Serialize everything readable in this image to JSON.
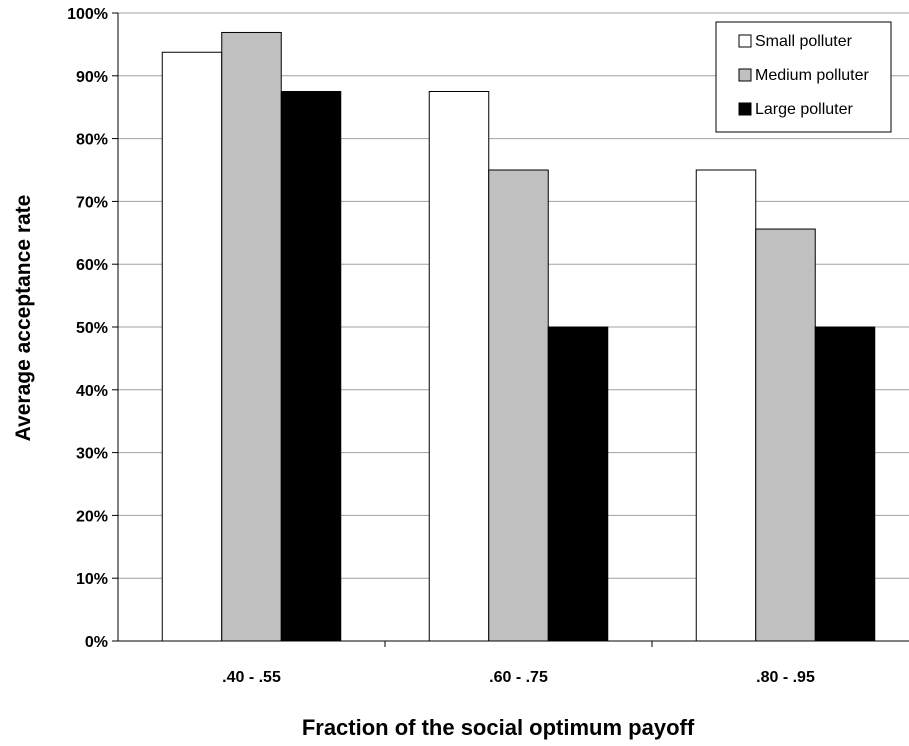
{
  "chart_data": {
    "type": "bar",
    "categories": [
      ".40 - .55",
      ".60 - .75",
      ".80 - .95"
    ],
    "series": [
      {
        "name": "Small polluter",
        "values": [
          93.75,
          87.5,
          75.0
        ],
        "color": "#ffffff"
      },
      {
        "name": "Medium polluter",
        "values": [
          96.9,
          75.0,
          65.6
        ],
        "color": "#c0c0c0"
      },
      {
        "name": "Large polluter",
        "values": [
          87.5,
          50.0,
          50.0
        ],
        "color": "#000000"
      }
    ],
    "xlabel": "Fraction of the social optimum payoff",
    "ylabel": "Average acceptance rate",
    "ylim": [
      0,
      100
    ],
    "yticks": [
      0,
      10,
      20,
      30,
      40,
      50,
      60,
      70,
      80,
      90,
      100
    ],
    "ytick_labels": [
      "0%",
      "10%",
      "20%",
      "30%",
      "40%",
      "50%",
      "60%",
      "70%",
      "80%",
      "90%",
      "100%"
    ],
    "grid": true,
    "legend_position": "top-right"
  }
}
